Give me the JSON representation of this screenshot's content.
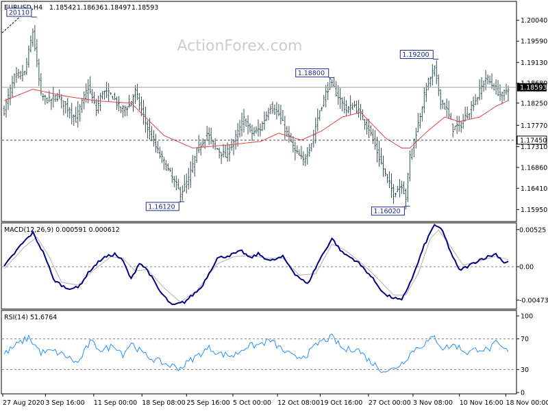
{
  "chart_data": [
    {
      "type": "ohlc",
      "header": {
        "symbol": "EURUSD,H4",
        "open": "1.18542",
        "high": "1.18636",
        "low": "1.18497",
        "close": "1.18593"
      },
      "watermark": "ActionForex.com",
      "y_ticks": [
        "1.20040",
        "1.19590",
        "1.19130",
        "1.18680",
        "1.18250",
        "1.17770",
        "1.17310",
        "1.16860",
        "1.16410",
        "1.15950"
      ],
      "ylim": [
        1.1572,
        1.2042
      ],
      "current_price_label": "1.18593",
      "current_price": 1.18593,
      "level_label": "1.17450",
      "level_price": 1.1745,
      "annotations": [
        {
          "label": "20110",
          "x_index": 14,
          "value": 1.2011
        },
        {
          "label": "1.16120",
          "x_index": 86,
          "value": 1.1612
        },
        {
          "label": "1.18800",
          "x_index": 159,
          "value": 1.188
        },
        {
          "label": "1.16020",
          "x_index": 196,
          "value": 1.1602
        },
        {
          "label": "1.19200",
          "x_index": 210,
          "value": 1.192
        }
      ],
      "anchors": [
        [
          0,
          1.181
        ],
        [
          5,
          1.188
        ],
        [
          10,
          1.189
        ],
        [
          14,
          1.198
        ],
        [
          18,
          1.184
        ],
        [
          22,
          1.183
        ],
        [
          26,
          1.184
        ],
        [
          30,
          1.182
        ],
        [
          35,
          1.179
        ],
        [
          41,
          1.186
        ],
        [
          45,
          1.181
        ],
        [
          48,
          1.185
        ],
        [
          53,
          1.184
        ],
        [
          57,
          1.181
        ],
        [
          61,
          1.182
        ],
        [
          64,
          1.185
        ],
        [
          70,
          1.177
        ],
        [
          75,
          1.172
        ],
        [
          80,
          1.168
        ],
        [
          86,
          1.163
        ],
        [
          90,
          1.166
        ],
        [
          94,
          1.172
        ],
        [
          99,
          1.176
        ],
        [
          103,
          1.173
        ],
        [
          108,
          1.171
        ],
        [
          113,
          1.175
        ],
        [
          117,
          1.179
        ],
        [
          121,
          1.176
        ],
        [
          125,
          1.177
        ],
        [
          130,
          1.182
        ],
        [
          134,
          1.18
        ],
        [
          138,
          1.176
        ],
        [
          142,
          1.172
        ],
        [
          146,
          1.17
        ],
        [
          150,
          1.174
        ],
        [
          154,
          1.181
        ],
        [
          159,
          1.187
        ],
        [
          163,
          1.184
        ],
        [
          167,
          1.181
        ],
        [
          171,
          1.182
        ],
        [
          174,
          1.18
        ],
        [
          178,
          1.177
        ],
        [
          182,
          1.172
        ],
        [
          186,
          1.167
        ],
        [
          190,
          1.163
        ],
        [
          194,
          1.165
        ],
        [
          196,
          1.162
        ],
        [
          198,
          1.171
        ],
        [
          202,
          1.178
        ],
        [
          206,
          1.186
        ],
        [
          210,
          1.19
        ],
        [
          213,
          1.183
        ],
        [
          216,
          1.181
        ],
        [
          219,
          1.177
        ],
        [
          223,
          1.178
        ],
        [
          227,
          1.181
        ],
        [
          231,
          1.184
        ],
        [
          235,
          1.188
        ],
        [
          239,
          1.186
        ],
        [
          243,
          1.184
        ],
        [
          246,
          1.186
        ]
      ],
      "ma_anchors": [
        [
          0,
          1.183
        ],
        [
          14,
          1.1855
        ],
        [
          30,
          1.184
        ],
        [
          45,
          1.183
        ],
        [
          62,
          1.1825
        ],
        [
          78,
          1.1755
        ],
        [
          92,
          1.1728
        ],
        [
          110,
          1.1735
        ],
        [
          125,
          1.1742
        ],
        [
          134,
          1.176
        ],
        [
          145,
          1.1745
        ],
        [
          155,
          1.1765
        ],
        [
          165,
          1.1795
        ],
        [
          174,
          1.1805
        ],
        [
          186,
          1.175
        ],
        [
          194,
          1.1728
        ],
        [
          198,
          1.1728
        ],
        [
          206,
          1.1762
        ],
        [
          215,
          1.1795
        ],
        [
          222,
          1.1785
        ],
        [
          232,
          1.1795
        ],
        [
          240,
          1.1818
        ],
        [
          247,
          1.1833
        ]
      ],
      "bar_count": 247
    },
    {
      "type": "line",
      "title": "MACD(12,26,9) 0.000591 0.000612",
      "y_ticks": [
        "0.00525",
        "0.00",
        "-0.004732"
      ],
      "ylim": [
        -0.0058,
        0.006
      ],
      "zero_line": 0,
      "macd_anchors": [
        [
          0,
          0.0
        ],
        [
          8,
          0.003
        ],
        [
          14,
          0.0048
        ],
        [
          20,
          0.0015
        ],
        [
          24,
          -0.0018
        ],
        [
          30,
          -0.003
        ],
        [
          36,
          -0.003
        ],
        [
          42,
          -0.0005
        ],
        [
          48,
          0.0012
        ],
        [
          54,
          0.0018
        ],
        [
          58,
          0.0008
        ],
        [
          62,
          -0.0018
        ],
        [
          66,
          0.0006
        ],
        [
          70,
          -0.0005
        ],
        [
          76,
          -0.0035
        ],
        [
          82,
          -0.0055
        ],
        [
          88,
          -0.005
        ],
        [
          96,
          -0.003
        ],
        [
          104,
          0.0012
        ],
        [
          110,
          0.0016
        ],
        [
          116,
          0.0022
        ],
        [
          120,
          0.0012
        ],
        [
          124,
          0.0018
        ],
        [
          130,
          0.0008
        ],
        [
          136,
          0.0014
        ],
        [
          142,
          -0.001
        ],
        [
          148,
          -0.0025
        ],
        [
          154,
          0.001
        ],
        [
          160,
          0.004
        ],
        [
          165,
          0.002
        ],
        [
          172,
          0.0008
        ],
        [
          178,
          -0.001
        ],
        [
          186,
          -0.004
        ],
        [
          194,
          -0.0048
        ],
        [
          200,
          -0.001
        ],
        [
          205,
          0.003
        ],
        [
          210,
          0.006
        ],
        [
          214,
          0.005
        ],
        [
          218,
          0.002
        ],
        [
          222,
          -0.0005
        ],
        [
          226,
          0.0
        ],
        [
          232,
          0.001
        ],
        [
          240,
          0.0018
        ],
        [
          244,
          0.0006
        ],
        [
          247,
          0.0008
        ]
      ],
      "signal_anchors": [
        [
          0,
          -0.0003
        ],
        [
          10,
          0.0028
        ],
        [
          16,
          0.0042
        ],
        [
          22,
          0.0014
        ],
        [
          28,
          -0.0022
        ],
        [
          36,
          -0.0026
        ],
        [
          44,
          -0.0004
        ],
        [
          52,
          0.0014
        ],
        [
          58,
          0.0012
        ],
        [
          64,
          -0.0006
        ],
        [
          70,
          -0.0004
        ],
        [
          78,
          -0.003
        ],
        [
          86,
          -0.005
        ],
        [
          94,
          -0.0034
        ],
        [
          104,
          0.0004
        ],
        [
          112,
          0.0014
        ],
        [
          120,
          0.0016
        ],
        [
          128,
          0.0012
        ],
        [
          136,
          0.0012
        ],
        [
          144,
          -0.0012
        ],
        [
          152,
          -0.001
        ],
        [
          160,
          0.0032
        ],
        [
          166,
          0.0024
        ],
        [
          174,
          0.0006
        ],
        [
          180,
          -0.001
        ],
        [
          190,
          -0.004
        ],
        [
          196,
          -0.004
        ],
        [
          202,
          -0.001
        ],
        [
          208,
          0.004
        ],
        [
          212,
          0.0052
        ],
        [
          218,
          0.0028
        ],
        [
          224,
          0.0002
        ],
        [
          232,
          0.0008
        ],
        [
          240,
          0.0015
        ],
        [
          247,
          0.0009
        ]
      ]
    },
    {
      "type": "line",
      "title": "RSI(14) 51.6764",
      "y_ticks": [
        "100",
        "70",
        "30",
        "0"
      ],
      "ylim": [
        0,
        100
      ],
      "levels": [
        70,
        30
      ],
      "rsi_anchors": [
        [
          0,
          50
        ],
        [
          6,
          62
        ],
        [
          12,
          72
        ],
        [
          18,
          52
        ],
        [
          24,
          54
        ],
        [
          30,
          48
        ],
        [
          36,
          38
        ],
        [
          42,
          66
        ],
        [
          48,
          55
        ],
        [
          54,
          62
        ],
        [
          58,
          50
        ],
        [
          62,
          65
        ],
        [
          68,
          50
        ],
        [
          74,
          42
        ],
        [
          80,
          36
        ],
        [
          86,
          32
        ],
        [
          92,
          44
        ],
        [
          100,
          58
        ],
        [
          106,
          50
        ],
        [
          112,
          48
        ],
        [
          118,
          60
        ],
        [
          124,
          62
        ],
        [
          130,
          68
        ],
        [
          136,
          55
        ],
        [
          142,
          45
        ],
        [
          148,
          50
        ],
        [
          154,
          66
        ],
        [
          160,
          72
        ],
        [
          166,
          55
        ],
        [
          172,
          58
        ],
        [
          178,
          42
        ],
        [
          184,
          30
        ],
        [
          188,
          28
        ],
        [
          194,
          38
        ],
        [
          200,
          56
        ],
        [
          204,
          62
        ],
        [
          210,
          72
        ],
        [
          214,
          58
        ],
        [
          220,
          62
        ],
        [
          226,
          52
        ],
        [
          232,
          58
        ],
        [
          236,
          55
        ],
        [
          240,
          64
        ],
        [
          244,
          56
        ],
        [
          247,
          52
        ]
      ]
    }
  ],
  "x_ticks": [
    {
      "label": "27 Aug 2020",
      "x_index": 0
    },
    {
      "label": "3 Sep 16:00",
      "x_index": 23
    },
    {
      "label": "11 Sep 00:00",
      "x_index": 49
    },
    {
      "label": "18 Sep 08:00",
      "x_index": 75
    },
    {
      "label": "25 Sep 16:00",
      "x_index": 99
    },
    {
      "label": "5 Oct 00:00",
      "x_index": 124
    },
    {
      "label": "12 Oct 08:00",
      "x_index": 148
    },
    {
      "label": "19 Oct 16:00",
      "x_index": 171
    },
    {
      "label": "27 Oct 00:00",
      "x_index": 197
    },
    {
      "label": "3 Nov 08:00",
      "x_index": 221
    },
    {
      "label": "10 Nov 16:00",
      "x_index": 246
    },
    {
      "label": "18 Nov 00:00",
      "x_index": 271
    }
  ],
  "colors": {
    "price_bars": "#2f4f4f",
    "moving_average": "#e04040",
    "macd_main": "#000080",
    "macd_signal": "#b0b0b0",
    "rsi": "#1e90ff",
    "grid_dash": "#808080",
    "tag_border": "#1a2a8a",
    "price_box": "#000000"
  }
}
